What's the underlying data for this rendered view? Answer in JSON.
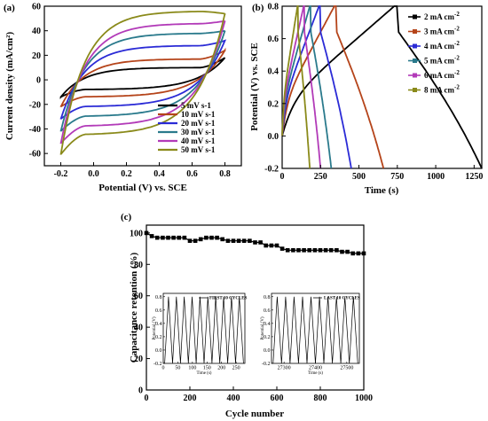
{
  "chart_data": [
    {
      "panel": "(a)",
      "type": "line",
      "xlabel": "Potential (V) vs. SCE",
      "ylabel": "Current density (mA/cm²)",
      "xlim": [
        -0.3,
        0.9
      ],
      "ylim": [
        -70,
        60
      ],
      "xticks": [
        -0.2,
        0.0,
        0.2,
        0.4,
        0.6,
        0.8
      ],
      "xtick_labels": [
        "-0.2",
        "0.0",
        "0.2",
        "0.4",
        "0.6",
        "0.8"
      ],
      "yticks": [
        -60,
        -40,
        -20,
        0,
        20,
        40,
        60
      ],
      "ytick_labels": [
        "-60",
        "-40",
        "-20",
        "0",
        "20",
        "40",
        "60"
      ],
      "legend_position": "bottom-right",
      "series": [
        {
          "name": "5 mV s-1",
          "color": "#000000",
          "upper": 10,
          "lower": -8,
          "start": -14,
          "end": 18
        },
        {
          "name": "10 mV s-1",
          "color": "#b5441a",
          "upper": 17,
          "lower": -14,
          "start": -22,
          "end": 24
        },
        {
          "name": "20 mV s-1",
          "color": "#2b2bd6",
          "upper": 28,
          "lower": -22,
          "start": -32,
          "end": 32
        },
        {
          "name": "30 mV s-1",
          "color": "#2a7a8c",
          "upper": 38,
          "lower": -30,
          "start": -42,
          "end": 40
        },
        {
          "name": "40 mV s-1",
          "color": "#b23ab8",
          "upper": 46,
          "lower": -38,
          "start": -52,
          "end": 48
        },
        {
          "name": "50 mV s-1",
          "color": "#8a8a1a",
          "upper": 56,
          "lower": -45,
          "start": -61,
          "end": 54
        }
      ]
    },
    {
      "panel": "(b)",
      "type": "line",
      "xlabel": "Time (s)",
      "ylabel": "Potential (V) vs. SCE",
      "xlim": [
        0,
        1300
      ],
      "ylim": [
        -0.2,
        0.8
      ],
      "xticks": [
        0,
        250,
        500,
        750,
        1000,
        1250
      ],
      "xtick_labels": [
        "0",
        "250",
        "500",
        "750",
        "1000",
        "1250"
      ],
      "yticks": [
        -0.2,
        0.0,
        0.2,
        0.4,
        0.6,
        0.8
      ],
      "ytick_labels": [
        "-0.2",
        "0.0",
        "0.2",
        "0.4",
        "0.6",
        "0.8"
      ],
      "legend_position": "top-right",
      "series": [
        {
          "name": "2 mA cm",
          "sup": "-2",
          "color": "#000000",
          "t_peak": 730,
          "t_end": 1300
        },
        {
          "name": "3 mA cm",
          "sup": "-2",
          "color": "#b5441a",
          "t_peak": 340,
          "t_end": 660
        },
        {
          "name": "4 mA cm",
          "sup": "-2",
          "color": "#2b2bd6",
          "t_peak": 240,
          "t_end": 450
        },
        {
          "name": "5 mA cm",
          "sup": "-2",
          "color": "#2a7a8c",
          "t_peak": 180,
          "t_end": 320
        },
        {
          "name": "6 mA cm",
          "sup": "-2",
          "color": "#b23ab8",
          "t_peak": 140,
          "t_end": 250
        },
        {
          "name": "8 mA cm",
          "sup": "-2",
          "color": "#8a8a1a",
          "t_peak": 100,
          "t_end": 180
        }
      ]
    },
    {
      "panel": "(c)",
      "type": "line",
      "xlabel": "Cycle number",
      "ylabel": "Capacitance retention (%)",
      "xlim": [
        0,
        1000
      ],
      "ylim": [
        0,
        105
      ],
      "xticks": [
        0,
        200,
        400,
        600,
        800,
        1000
      ],
      "xtick_labels": [
        "0",
        "200",
        "400",
        "600",
        "800",
        "1000"
      ],
      "yticks": [
        0,
        20,
        40,
        60,
        80,
        100
      ],
      "ytick_labels": [
        "0",
        "20",
        "40",
        "60",
        "80",
        "100"
      ],
      "x": [
        0,
        25,
        50,
        75,
        100,
        125,
        150,
        175,
        200,
        225,
        250,
        275,
        300,
        325,
        350,
        375,
        400,
        425,
        450,
        475,
        500,
        525,
        550,
        575,
        600,
        625,
        650,
        675,
        700,
        725,
        750,
        775,
        800,
        825,
        850,
        875,
        900,
        925,
        950,
        975,
        1000
      ],
      "values": [
        100,
        98,
        97,
        97,
        97,
        97,
        97,
        97,
        95,
        95,
        96,
        97,
        97,
        97,
        96,
        95,
        95,
        95,
        95,
        95,
        94,
        94,
        92,
        92,
        92,
        90,
        89,
        89,
        89,
        89,
        89,
        89,
        89,
        89,
        89,
        89,
        88,
        88,
        87,
        87,
        87
      ],
      "insets": [
        {
          "legend": "FIRST 10 CYCLES",
          "xlabel": "Time (s)",
          "ylabel": "Potential (V)",
          "xlim": [
            0,
            280
          ],
          "ylim": [
            -0.2,
            0.85
          ],
          "xticks": [
            0,
            50,
            100,
            150,
            200,
            250
          ],
          "xtick_labels": [
            "0",
            "50",
            "100",
            "150",
            "200",
            "250"
          ],
          "yticks": [
            -0.2,
            0.0,
            0.2,
            0.4,
            0.6,
            0.8
          ],
          "ytick_labels": [
            "-0.2",
            "0.0",
            "0.2",
            "0.4",
            "0.6",
            "0.8"
          ],
          "t_start": 5,
          "period": 27,
          "cycles": 10
        },
        {
          "legend": "LAST 10 CYCLES",
          "xlabel": "Time (s)",
          "ylabel": "Potential (V)",
          "xlim": [
            27260,
            27540
          ],
          "ylim": [
            -0.2,
            0.85
          ],
          "xticks": [
            27300,
            27400,
            27500
          ],
          "xtick_labels": [
            "27300",
            "27400",
            "27500"
          ],
          "yticks": [
            -0.2,
            0.0,
            0.2,
            0.4,
            0.6,
            0.8
          ],
          "ytick_labels": [
            "-0.2",
            "0.0",
            "0.2",
            "0.4",
            "0.6",
            "0.8"
          ],
          "t_start": 27265,
          "period": 27,
          "cycles": 10
        }
      ]
    }
  ]
}
